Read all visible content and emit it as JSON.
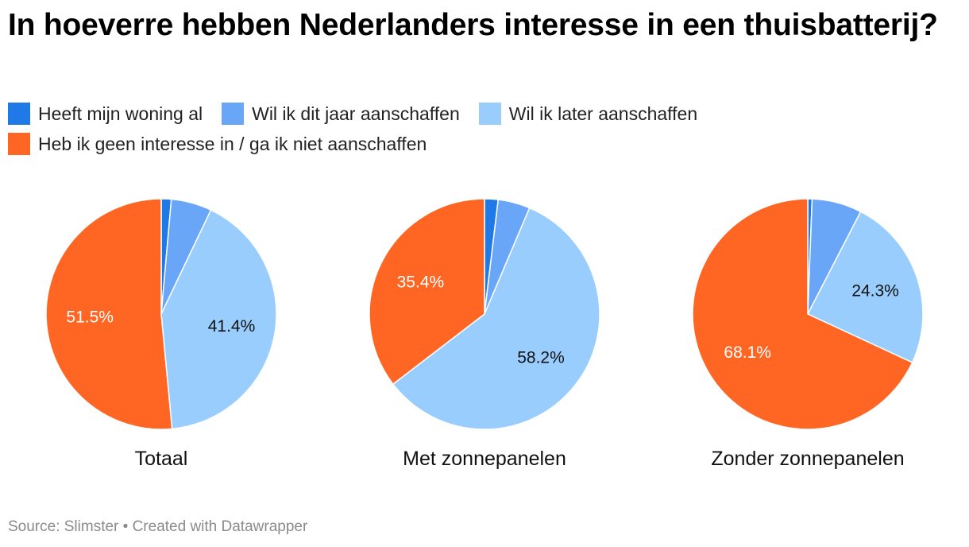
{
  "title": "In hoeverre hebben Nederlanders interesse in een thuisbatterij?",
  "legend": [
    {
      "label": "Heeft mijn woning al",
      "color": "#1f7ae8"
    },
    {
      "label": "Wil ik dit jaar aanschaffen",
      "color": "#6aa6f8"
    },
    {
      "label": "Wil ik later aanschaffen",
      "color": "#98cdfd"
    },
    {
      "label": "Heb ik geen interesse in / ga ik niet aanschaffen",
      "color": "#ff6623"
    }
  ],
  "chart_data": [
    {
      "type": "pie",
      "title": "Totaal",
      "series": [
        {
          "name": "Heeft mijn woning al",
          "value": 1.4
        },
        {
          "name": "Wil ik dit jaar aanschaffen",
          "value": 5.7
        },
        {
          "name": "Wil ik later aanschaffen",
          "value": 41.4,
          "label": "41.4%"
        },
        {
          "name": "Heb ik geen interesse in / ga ik niet aanschaffen",
          "value": 51.5,
          "label": "51.5%"
        }
      ]
    },
    {
      "type": "pie",
      "title": "Met zonnepanelen",
      "series": [
        {
          "name": "Heeft mijn woning al",
          "value": 1.9
        },
        {
          "name": "Wil ik dit jaar aanschaffen",
          "value": 4.5
        },
        {
          "name": "Wil ik later aanschaffen",
          "value": 58.2,
          "label": "58.2%"
        },
        {
          "name": "Heb ik geen interesse in / ga ik niet aanschaffen",
          "value": 35.4,
          "label": "35.4%"
        }
      ]
    },
    {
      "type": "pie",
      "title": "Zonder zonnepanelen",
      "series": [
        {
          "name": "Heeft mijn woning al",
          "value": 0.6
        },
        {
          "name": "Wil ik dit jaar aanschaffen",
          "value": 7.0
        },
        {
          "name": "Wil ik later aanschaffen",
          "value": 24.3,
          "label": "24.3%"
        },
        {
          "name": "Heb ik geen interesse in / ga ik niet aanschaffen",
          "value": 68.1,
          "label": "68.1%"
        }
      ]
    }
  ],
  "source": "Source: Slimster • Created with Datawrapper"
}
